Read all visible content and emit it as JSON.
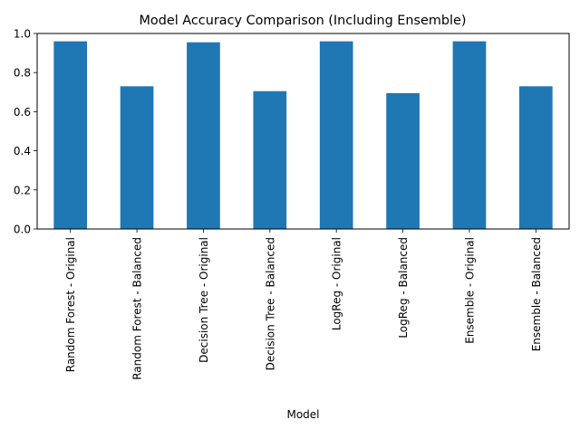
{
  "chart_data": {
    "type": "bar",
    "title": "Model Accuracy Comparison (Including Ensemble)",
    "xlabel": "Model",
    "ylabel": "",
    "categories": [
      "Random Forest - Original",
      "Random Forest - Balanced",
      "Decision Tree - Original",
      "Decision Tree - Balanced",
      "LogReg - Original",
      "LogReg - Balanced",
      "Ensemble - Original",
      "Ensemble - Balanced"
    ],
    "values": [
      0.96,
      0.73,
      0.955,
      0.705,
      0.96,
      0.695,
      0.96,
      0.73
    ],
    "ylim": [
      0,
      1.0
    ],
    "yticks": [
      0.0,
      0.2,
      0.4,
      0.6,
      0.8,
      1.0
    ],
    "ytick_labels": [
      "0.0",
      "0.2",
      "0.4",
      "0.6",
      "0.8",
      "1.0"
    ],
    "grid": false,
    "bar_color": "#1f77b4"
  }
}
